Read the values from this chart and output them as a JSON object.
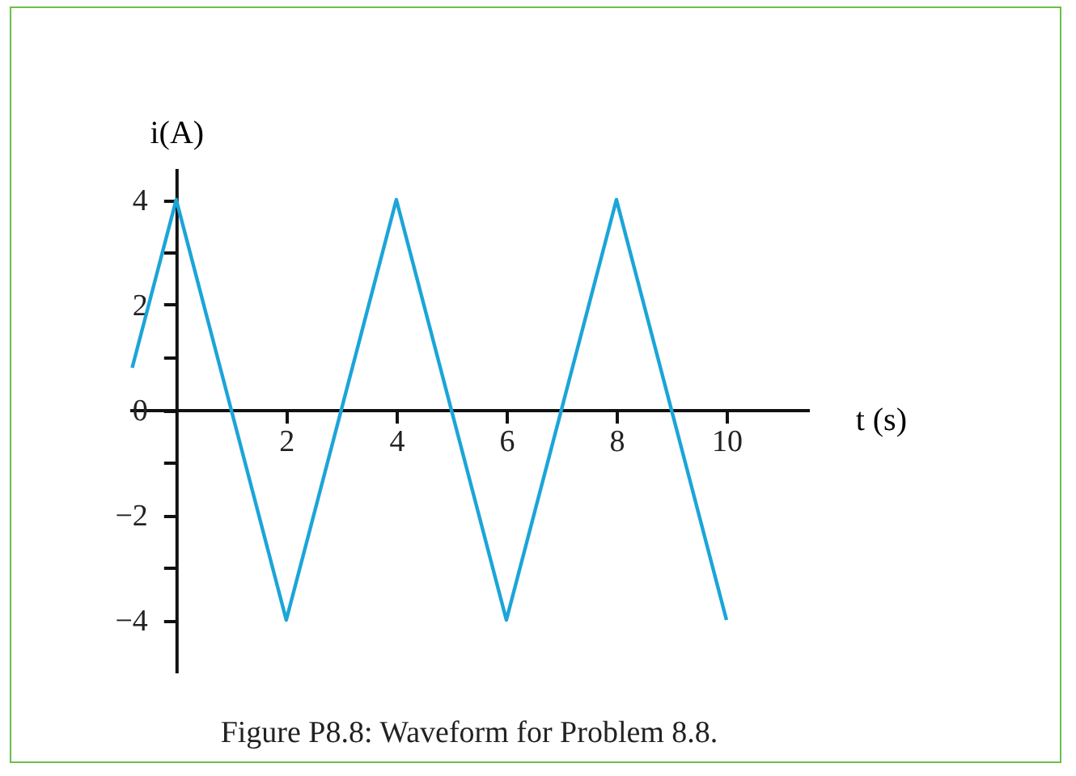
{
  "chart_data": {
    "type": "line",
    "title": "Figure P8.8: Waveform for Problem 8.8.",
    "xlabel": "t (s)",
    "ylabel": "i(A)",
    "x": [
      -0.8,
      0,
      2,
      4,
      6,
      8,
      10
    ],
    "series": [
      {
        "color": "#1ba5d8",
        "values": [
          0.8,
          4,
          -4,
          4,
          -4,
          4,
          -4
        ]
      }
    ],
    "xlim": [
      -0.85,
      11.5
    ],
    "ylim": [
      -5,
      4.6
    ],
    "xticks": [
      2,
      4,
      6,
      8,
      10
    ],
    "yticks": [
      {
        "value": -4,
        "label": "−4"
      },
      {
        "value": -3,
        "label": null
      },
      {
        "value": -2,
        "label": "−2"
      },
      {
        "value": -1,
        "label": null
      },
      {
        "value": 0,
        "label": "0"
      },
      {
        "value": 1,
        "label": null
      },
      {
        "value": 2,
        "label": "2"
      },
      {
        "value": 3,
        "label": null
      },
      {
        "value": 4,
        "label": "4"
      }
    ],
    "grid": false,
    "marker": "none",
    "line_style": "solid"
  }
}
